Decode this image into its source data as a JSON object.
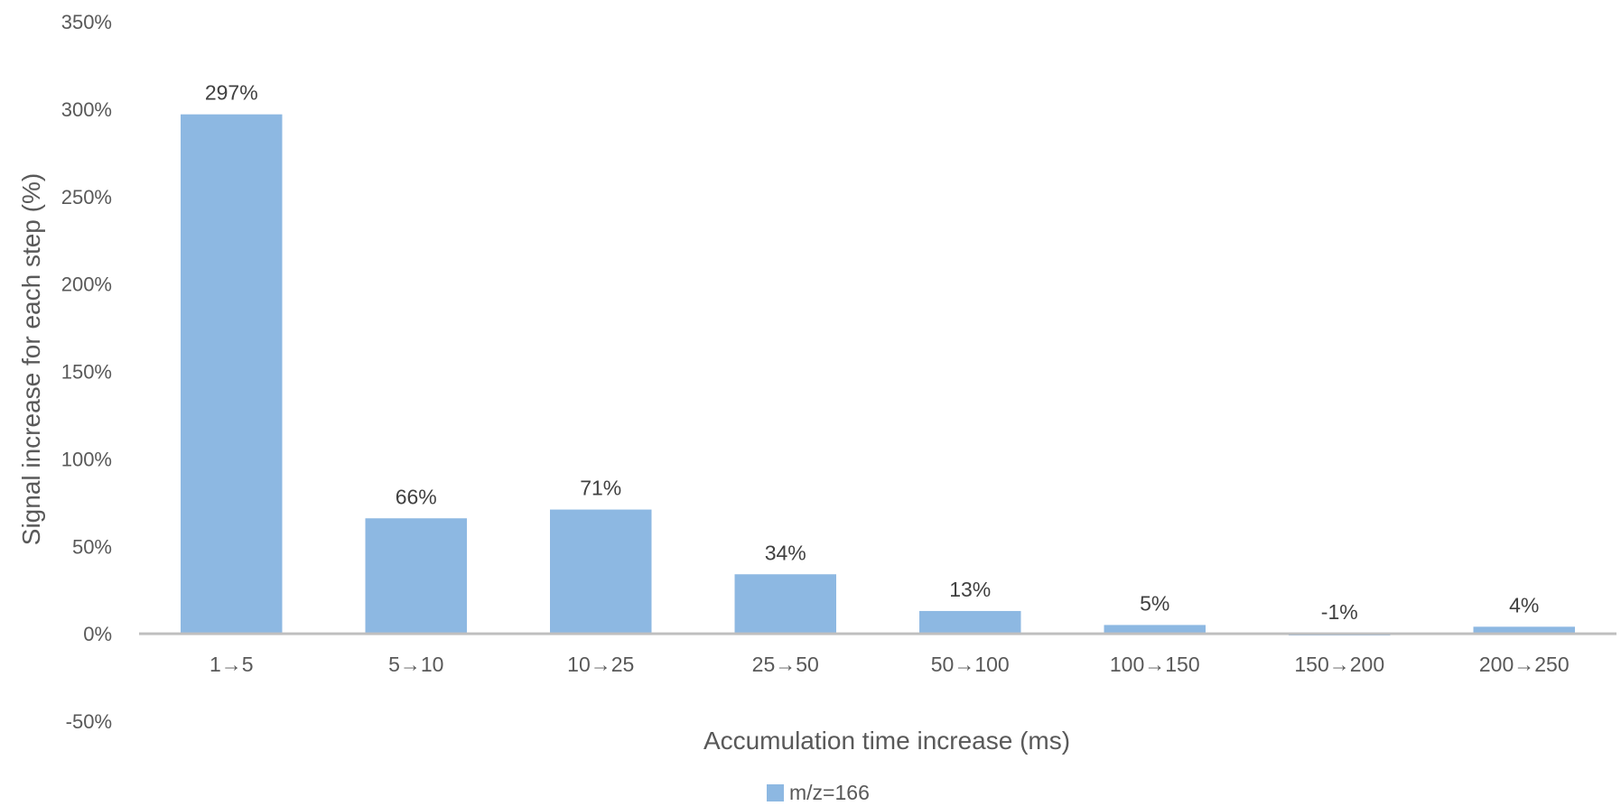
{
  "chart_data": {
    "type": "bar",
    "categories": [
      "1→5",
      "5→10",
      "10→25",
      "25→50",
      "50→100",
      "100→150",
      "150→200",
      "200→250"
    ],
    "series": [
      {
        "name": "m/z=166",
        "values": [
          297,
          66,
          71,
          34,
          13,
          5,
          -1,
          4
        ],
        "data_labels": [
          "297%",
          "66%",
          "71%",
          "34%",
          "13%",
          "5%",
          "-1%",
          "4%"
        ],
        "color": "#8DB8E2"
      }
    ],
    "title": "",
    "xlabel": "Accumulation time increase (ms)",
    "ylabel": "Signal increase for each step (%)",
    "ylim": [
      -50,
      350
    ],
    "yticks": [
      350,
      300,
      250,
      200,
      150,
      100,
      50,
      0,
      -50
    ],
    "ytick_labels": [
      "350%",
      "300%",
      "250%",
      "200%",
      "150%",
      "100%",
      "50%",
      "0%",
      "-50%"
    ],
    "grid": false,
    "legend_position": "bottom",
    "axis_color": "#BFBFBF"
  }
}
